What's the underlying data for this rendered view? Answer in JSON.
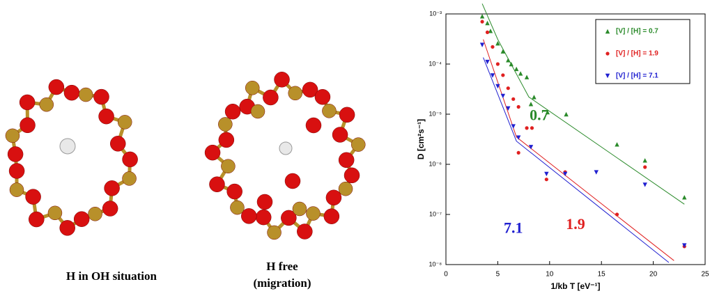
{
  "figure": {
    "left_caption": "H in OH situation",
    "right_caption": [
      "H free",
      "(migration)"
    ]
  },
  "chart_data": {
    "type": "scatter",
    "x_label": "1/kb T [eV⁻¹]",
    "y_label": "D [cm²s⁻¹]",
    "xlim": [
      0,
      25
    ],
    "xticks": [
      0,
      5,
      10,
      15,
      20,
      25
    ],
    "ylim": [
      1e-08,
      0.001
    ],
    "log_y": true,
    "yticks": [
      {
        "value": 1e-08,
        "label": "10⁻⁸"
      },
      {
        "value": 1e-07,
        "label": "10⁻⁷"
      },
      {
        "value": 1e-06,
        "label": "10⁻⁶"
      },
      {
        "value": 1e-05,
        "label": "10⁻⁵"
      },
      {
        "value": 0.0001,
        "label": "10⁻⁴"
      },
      {
        "value": 0.001,
        "label": "10⁻³"
      }
    ],
    "legend_position": "upper right",
    "series": [
      {
        "name": "[V] / [H] = 0.7",
        "color": "#2a8a2a",
        "marker": "triangle-up",
        "x": [
          3.5,
          4,
          4.3,
          5,
          5.5,
          6,
          6.3,
          6.8,
          7.2,
          7.8,
          8.2,
          8.5,
          9.8,
          11.6,
          16.5,
          19.2,
          23
        ],
        "values": [
          0.0009,
          0.00066,
          0.00046,
          0.00026,
          0.00018,
          0.00012,
          0.0001,
          8e-05,
          6.5e-05,
          5.5e-05,
          1.6e-05,
          2.2e-05,
          1.1e-05,
          1e-05,
          2.5e-06,
          1.2e-06,
          2.2e-07
        ],
        "fit": {
          "x": [
            3.5,
            5,
            8,
            23
          ],
          "values": [
            0.0016,
            0.00031,
            2.2e-05,
            1.6e-07
          ]
        }
      },
      {
        "name": "[V] / [H] = 1.9",
        "color": "#e02020",
        "marker": "circle",
        "x": [
          3.5,
          4,
          4.5,
          5,
          5.5,
          6,
          6.5,
          7,
          7,
          7.8,
          8.3,
          9.7,
          11.5,
          16.5,
          19.2,
          23
        ],
        "values": [
          0.0007,
          0.00043,
          0.00022,
          0.0001,
          6e-05,
          3.3e-05,
          2e-05,
          1.4e-05,
          1.7e-06,
          5.3e-06,
          5.3e-06,
          5e-07,
          7e-07,
          1e-07,
          8.8e-07,
          2.3e-08
        ],
        "fit": {
          "x": [
            3.6,
            6.8,
            22
          ],
          "values": [
            0.00031,
            3.5e-06,
            1.2e-08
          ]
        }
      },
      {
        "name": "[V] / [H] = 7.1",
        "color": "#2020d0",
        "marker": "triangle-down",
        "x": [
          3.5,
          4,
          4.5,
          5,
          5.5,
          6,
          6.5,
          7,
          8.2,
          9.7,
          11.5,
          14.5,
          19.2,
          23
        ],
        "values": [
          0.00024,
          0.00011,
          5.9e-05,
          3.6e-05,
          2.3e-05,
          1.3e-05,
          5.7e-06,
          3.4e-06,
          2.2e-06,
          6.4e-07,
          6.4e-07,
          6.9e-07,
          3.9e-07,
          2.4e-08
        ],
        "fit": {
          "x": [
            3.6,
            6.8,
            21.5
          ],
          "values": [
            0.000135,
            2.9e-06,
            1.1e-08
          ]
        }
      }
    ],
    "annotations": [
      {
        "text": "0.7",
        "x": 9,
        "y": 9e-06,
        "color": "#2a8a2a"
      },
      {
        "text": "1.9",
        "x": 12.5,
        "y": 6e-08,
        "color": "#e02020"
      },
      {
        "text": "7.1",
        "x": 6.5,
        "y": 5e-08,
        "color": "#2020d0"
      }
    ]
  }
}
